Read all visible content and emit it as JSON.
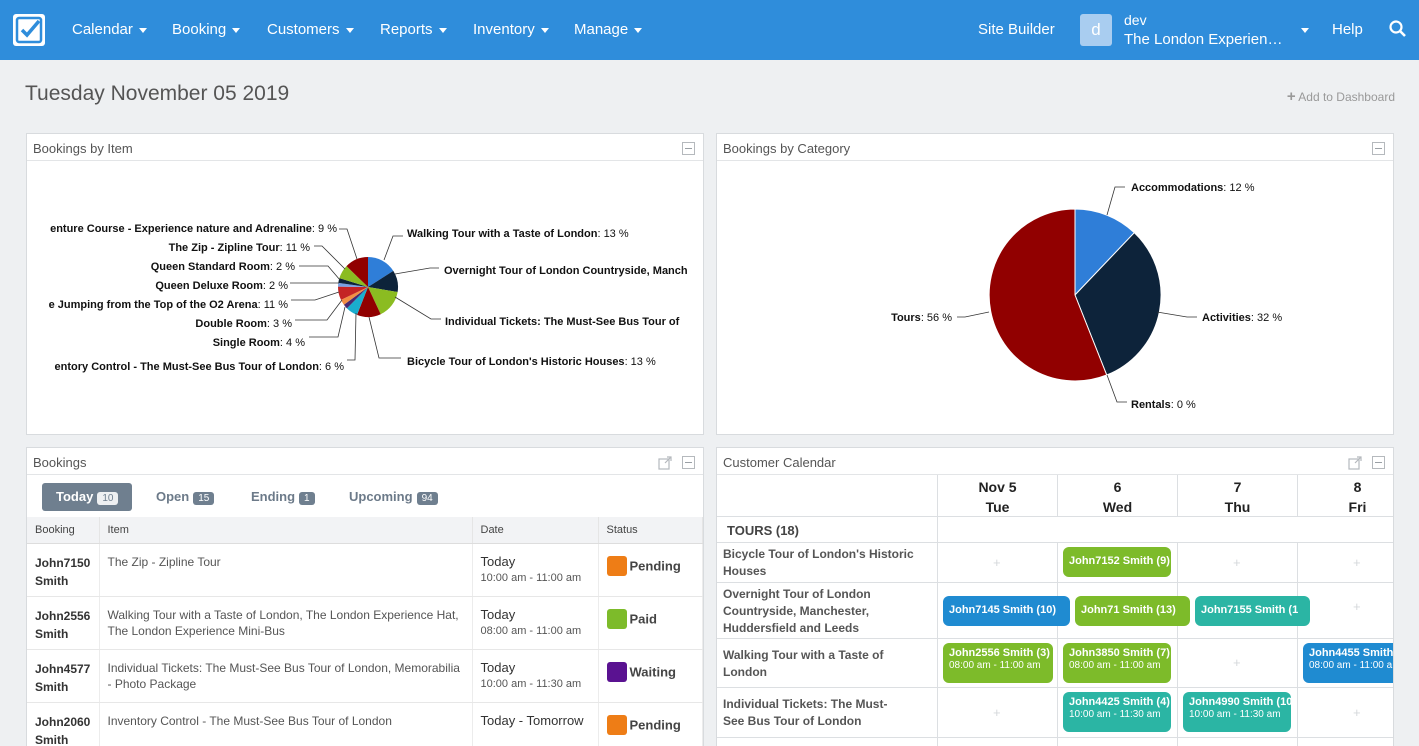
{
  "nav": {
    "items": [
      "Calendar",
      "Booking",
      "Customers",
      "Reports",
      "Inventory",
      "Manage"
    ],
    "site_builder": "Site Builder",
    "user_initial": "d",
    "user_name": "dev",
    "user_company": "The London Experienc...",
    "help": "Help"
  },
  "header": {
    "date": "Tuesday November 05 2019",
    "add_dashboard": "Add to Dashboard"
  },
  "bookings_by_item": {
    "title": "Bookings by Item",
    "labels": [
      {
        "name": "Walking Tour with a Taste of London",
        "pct": ": 13 %"
      },
      {
        "name": "Overnight Tour of London Countryside, Manch",
        "pct": ""
      },
      {
        "name": "Individual Tickets: The Must-See Bus Tour of",
        "pct": ""
      },
      {
        "name": "Bicycle Tour of London's Historic Houses",
        "pct": ": 13 %"
      },
      {
        "name": "enture Course - Experience nature and Adrenaline",
        "pct": ": 9 %"
      },
      {
        "name": "The Zip - Zipline Tour",
        "pct": ": 11 %"
      },
      {
        "name": "Queen Standard Room",
        "pct": ": 2 %"
      },
      {
        "name": "Queen Deluxe Room",
        "pct": ": 2 %"
      },
      {
        "name": "e Jumping from the Top of the O2 Arena",
        "pct": ": 11 %"
      },
      {
        "name": "Double Room",
        "pct": ": 3 %"
      },
      {
        "name": "Single Room",
        "pct": ": 4 %"
      },
      {
        "name": "entory Control - The Must-See Bus Tour of London",
        "pct": ": 6 %"
      }
    ]
  },
  "bookings_by_category": {
    "title": "Bookings by Category",
    "labels": [
      {
        "name": "Accommodations",
        "pct": ": 12 %"
      },
      {
        "name": "Activities",
        "pct": ": 32 %"
      },
      {
        "name": "Rentals",
        "pct": ": 0 %"
      },
      {
        "name": "Tours",
        "pct": ": 56 %"
      }
    ]
  },
  "bookings": {
    "title": "Bookings",
    "tabs": [
      {
        "label": "Today",
        "count": "10"
      },
      {
        "label": "Open",
        "count": "15"
      },
      {
        "label": "Ending",
        "count": "1"
      },
      {
        "label": "Upcoming",
        "count": "94"
      }
    ],
    "columns": [
      "Booking",
      "Item",
      "Date",
      "Status"
    ],
    "rows": [
      {
        "first": "John7150",
        "last": "Smith",
        "item": "The Zip - Zipline Tour",
        "date": "Today",
        "time": "10:00 am - 11:00 am",
        "status": "Pending",
        "color": "#ee7d16"
      },
      {
        "first": "John2556",
        "last": "Smith",
        "item": "Walking Tour with a Taste of London, The London Experience Hat, The London Experience Mini-Bus",
        "date": "Today",
        "time": "08:00 am - 11:00 am",
        "status": "Paid",
        "color": "#7dbb2a"
      },
      {
        "first": "John4577",
        "last": "Smith",
        "item": "Individual Tickets: The Must-See Bus Tour of London, Memorabilia - Photo Package",
        "date": "Today",
        "time": "10:00 am - 11:30 am",
        "status": "Waiting",
        "color": "#5a1291"
      },
      {
        "first": "John2060",
        "last": "Smith",
        "item": "Inventory Control - The Must-See Bus Tour of London",
        "date": "Today - Tomorrow",
        "time": "",
        "status": "Pending",
        "color": "#ee7d16"
      }
    ]
  },
  "calendar": {
    "title": "Customer Calendar",
    "days": [
      {
        "date": "Nov 5",
        "dow": "Tue"
      },
      {
        "date": "6",
        "dow": "Wed"
      },
      {
        "date": "7",
        "dow": "Thu"
      },
      {
        "date": "8",
        "dow": "Fri"
      }
    ],
    "group": "TOURS (18)",
    "rows": [
      "Bicycle Tour of London's Historic Houses",
      "Overnight Tour of London Countryside, Manchester, Huddersfield and Leeds",
      "Walking Tour with a Taste of London",
      "Individual Tickets: The Must-See Bus Tour of London"
    ],
    "events": [
      {
        "name": "John7152 Smith (9)",
        "time": "",
        "color": "#7dbb2a"
      },
      {
        "name": "John7145 Smith (10)",
        "time": "",
        "color": "#1f8bd1"
      },
      {
        "name": "John71 Smith (13)",
        "time": "",
        "color": "#7dbb2a"
      },
      {
        "name": "John7155 Smith (1",
        "time": "",
        "color": "#2bb5a4"
      },
      {
        "name": "John2556 Smith (3)",
        "time": "08:00 am - 11:00 am",
        "color": "#7dbb2a"
      },
      {
        "name": "John3850 Smith (7)",
        "time": "08:00 am - 11:00 am",
        "color": "#7dbb2a"
      },
      {
        "name": "John4455 Smith",
        "time": "08:00 am - 11:00 a",
        "color": "#1f8bd1"
      },
      {
        "name": "John4425 Smith (4)",
        "time": "10:00 am - 11:30 am",
        "color": "#2bb5a4"
      },
      {
        "name": "John4990 Smith (10",
        "time": "10:00 am - 11:30 am",
        "color": "#2bb5a4"
      }
    ]
  }
}
